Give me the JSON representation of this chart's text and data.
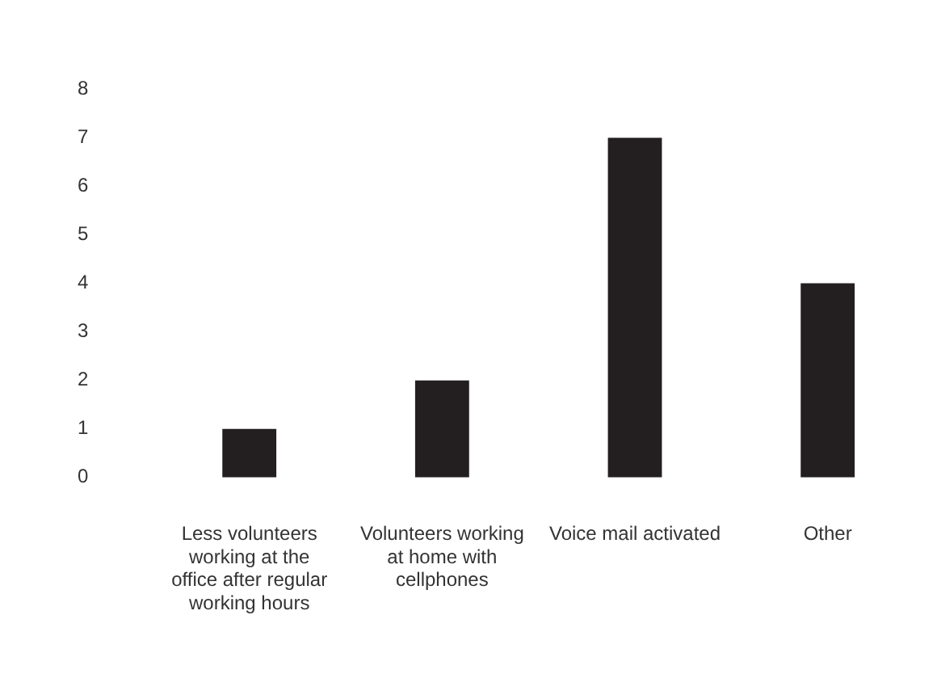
{
  "chart_data": {
    "type": "bar",
    "categories": [
      "Less volunteers working at the office after regular working hours",
      "Volunteers working at home with cellphones",
      "Voice mail activated",
      "Other"
    ],
    "values": [
      1,
      2,
      7,
      4
    ],
    "color": "#231f20",
    "ylim": [
      0,
      8
    ],
    "yticks": [
      0,
      1,
      2,
      3,
      4,
      5,
      6,
      7,
      8
    ],
    "grid": false,
    "legend": false
  }
}
